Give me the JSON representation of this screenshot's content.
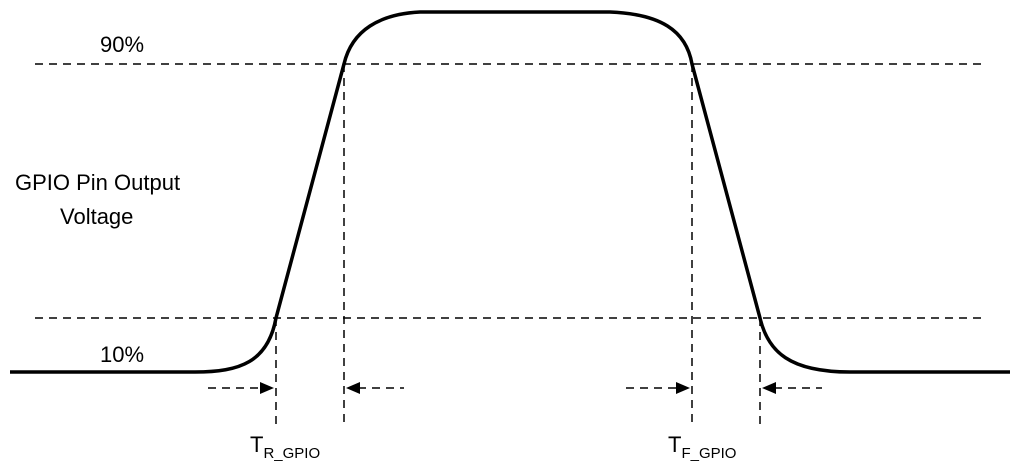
{
  "labels": {
    "level_high": "90%",
    "level_low": "10%",
    "y_label_line1": "GPIO Pin Output",
    "y_label_line2": "Voltage",
    "rise_main": "T",
    "rise_sub": "R_GPIO",
    "fall_main": "T",
    "fall_sub": "F_GPIO"
  }
}
